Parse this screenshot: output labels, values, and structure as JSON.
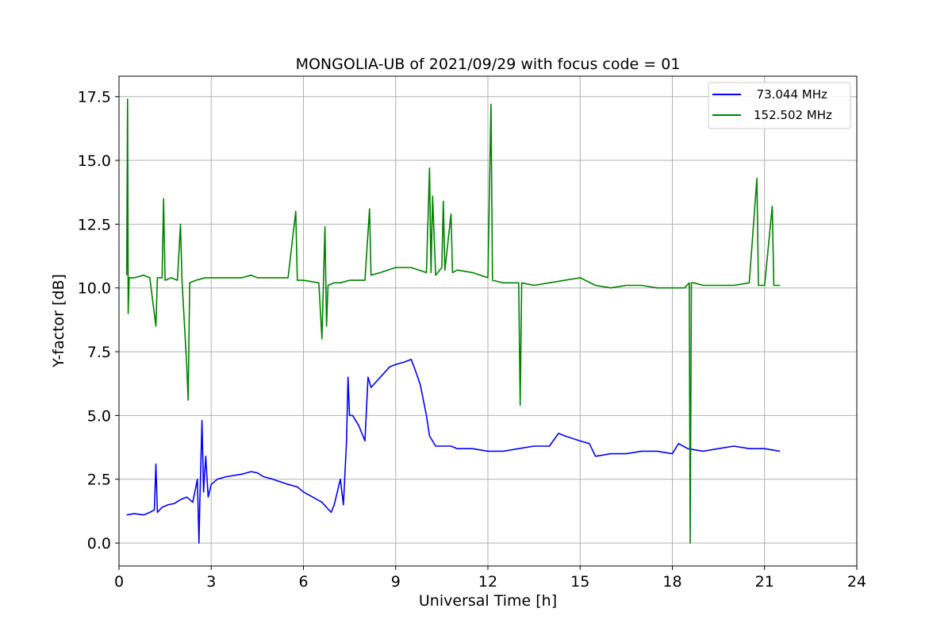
{
  "chart_data": {
    "type": "line",
    "title": "MONGOLIA-UB of 2021/09/29 with focus code = 01",
    "xlabel": "Universal Time [h]",
    "ylabel": "Y-factor [dB]",
    "xlim": [
      0,
      24
    ],
    "ylim": [
      -0.9,
      18.3
    ],
    "xticks": [
      0,
      3,
      6,
      9,
      12,
      15,
      18,
      21,
      24
    ],
    "xtick_labels": [
      "0",
      "3",
      "6",
      "9",
      "12",
      "15",
      "18",
      "21",
      "24"
    ],
    "yticks": [
      0.0,
      2.5,
      5.0,
      7.5,
      10.0,
      12.5,
      15.0,
      17.5
    ],
    "ytick_labels": [
      "0.0",
      "2.5",
      "5.0",
      "7.5",
      "10.0",
      "12.5",
      "15.0",
      "17.5"
    ],
    "grid": true,
    "legend_position": "top-right",
    "series": [
      {
        "name": "  73.044 MHz",
        "color": "#0000ff",
        "x": [
          0.25,
          0.5,
          0.8,
          1.0,
          1.15,
          1.2,
          1.25,
          1.4,
          1.6,
          1.8,
          2.0,
          2.2,
          2.4,
          2.55,
          2.6,
          2.63,
          2.7,
          2.75,
          2.82,
          2.9,
          3.0,
          3.2,
          3.5,
          4.0,
          4.3,
          4.5,
          4.7,
          5.0,
          5.5,
          5.8,
          6.0,
          6.3,
          6.6,
          6.9,
          7.0,
          7.2,
          7.3,
          7.4,
          7.45,
          7.5,
          7.6,
          7.8,
          8.0,
          8.1,
          8.2,
          8.5,
          8.8,
          9.0,
          9.3,
          9.5,
          9.6,
          9.8,
          10.0,
          10.1,
          10.3,
          10.5,
          10.8,
          11.0,
          11.5,
          12.0,
          12.5,
          13.0,
          13.5,
          14.0,
          14.3,
          14.5,
          15.0,
          15.3,
          15.5,
          16.0,
          16.5,
          17.0,
          17.5,
          18.0,
          18.2,
          18.5,
          19.0,
          19.5,
          20.0,
          20.5,
          21.0,
          21.5
        ],
        "values": [
          1.1,
          1.15,
          1.1,
          1.2,
          1.3,
          3.1,
          1.2,
          1.4,
          1.5,
          1.55,
          1.7,
          1.8,
          1.6,
          2.5,
          0.0,
          1.6,
          4.8,
          2.0,
          3.4,
          1.8,
          2.3,
          2.5,
          2.6,
          2.7,
          2.8,
          2.75,
          2.6,
          2.5,
          2.3,
          2.2,
          2.0,
          1.8,
          1.6,
          1.2,
          1.5,
          2.5,
          1.5,
          4.0,
          6.5,
          5.0,
          5.0,
          4.6,
          4.0,
          6.5,
          6.1,
          6.5,
          6.9,
          7.0,
          7.1,
          7.2,
          6.9,
          6.2,
          5.0,
          4.2,
          3.8,
          3.8,
          3.8,
          3.7,
          3.7,
          3.6,
          3.6,
          3.7,
          3.8,
          3.8,
          4.3,
          4.2,
          4.0,
          3.9,
          3.4,
          3.5,
          3.5,
          3.6,
          3.6,
          3.5,
          3.9,
          3.7,
          3.6,
          3.7,
          3.8,
          3.7,
          3.7,
          3.6
        ]
      },
      {
        "name": "152.502 MHz",
        "color": "#008000",
        "x": [
          0.25,
          0.28,
          0.3,
          0.33,
          0.5,
          0.8,
          1.0,
          1.2,
          1.25,
          1.4,
          1.45,
          1.5,
          1.7,
          1.9,
          2.0,
          2.05,
          2.2,
          2.25,
          2.3,
          2.5,
          2.8,
          3.0,
          3.5,
          4.0,
          4.3,
          4.5,
          5.0,
          5.5,
          5.75,
          5.8,
          6.0,
          6.5,
          6.6,
          6.7,
          6.75,
          6.8,
          7.0,
          7.2,
          7.5,
          8.0,
          8.15,
          8.2,
          8.5,
          9.0,
          9.5,
          10.0,
          10.1,
          10.15,
          10.2,
          10.3,
          10.5,
          10.55,
          10.6,
          10.8,
          10.85,
          11.0,
          11.5,
          12.0,
          12.1,
          12.15,
          12.5,
          13.0,
          13.05,
          13.1,
          13.5,
          14.0,
          14.5,
          15.0,
          15.5,
          16.0,
          16.5,
          17.0,
          17.5,
          18.0,
          18.4,
          18.55,
          18.58,
          18.62,
          18.7,
          19.0,
          19.5,
          20.0,
          20.5,
          20.75,
          20.8,
          21.0,
          21.25,
          21.3,
          21.5
        ],
        "values": [
          10.5,
          17.4,
          9.0,
          10.4,
          10.4,
          10.5,
          10.4,
          8.5,
          10.4,
          10.4,
          13.5,
          10.3,
          10.4,
          10.3,
          12.5,
          10.3,
          7.0,
          5.6,
          10.2,
          10.3,
          10.4,
          10.4,
          10.4,
          10.4,
          10.5,
          10.4,
          10.4,
          10.4,
          13.0,
          10.3,
          10.3,
          10.2,
          8.0,
          12.4,
          8.5,
          10.1,
          10.2,
          10.2,
          10.3,
          10.3,
          13.1,
          10.5,
          10.6,
          10.8,
          10.8,
          10.6,
          14.7,
          10.6,
          13.6,
          10.5,
          10.8,
          13.4,
          10.7,
          12.9,
          10.6,
          10.7,
          10.6,
          10.4,
          17.2,
          10.3,
          10.2,
          10.2,
          5.4,
          10.2,
          10.1,
          10.2,
          10.3,
          10.4,
          10.1,
          10.0,
          10.1,
          10.1,
          10.0,
          10.0,
          10.0,
          10.2,
          0.0,
          10.2,
          10.2,
          10.1,
          10.1,
          10.1,
          10.2,
          14.3,
          10.1,
          10.1,
          13.2,
          10.1,
          10.1
        ]
      }
    ]
  }
}
